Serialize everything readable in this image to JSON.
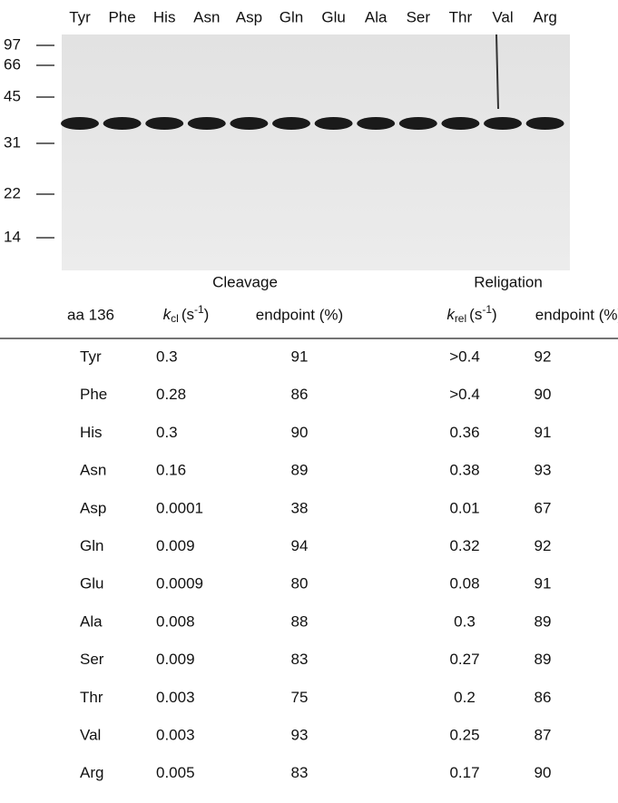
{
  "gel": {
    "lane_labels": [
      "Tyr",
      "Phe",
      "His",
      "Asn",
      "Asp",
      "Gln",
      "Glu",
      "Ala",
      "Ser",
      "Thr",
      "Val",
      "Arg"
    ],
    "marker_labels": [
      "97",
      "66",
      "45",
      "31",
      "22",
      "14"
    ]
  },
  "table": {
    "group_headers": [
      "Cleavage",
      "Religation"
    ],
    "columns": [
      {
        "text": "aa 136"
      },
      {
        "symbol": "k",
        "subscript": "cl",
        "unit_open": "(s",
        "superscript": "-1",
        "unit_close": ")"
      },
      {
        "text": "endpoint (%)"
      },
      {
        "symbol": "k",
        "subscript": "rel",
        "unit_open": "(s",
        "superscript": "-1",
        "unit_close": ")"
      },
      {
        "text": "endpoint (%)"
      }
    ],
    "rows": [
      [
        "Tyr",
        "0.3",
        "91",
        ">0.4",
        "92"
      ],
      [
        "Phe",
        "0.28",
        "86",
        ">0.4",
        "90"
      ],
      [
        "His",
        "0.3",
        "90",
        "0.36",
        "91"
      ],
      [
        "Asn",
        "0.16",
        "89",
        "0.38",
        "93"
      ],
      [
        "Asp",
        "0.0001",
        "38",
        "0.01",
        "67"
      ],
      [
        "Gln",
        "0.009",
        "94",
        "0.32",
        "92"
      ],
      [
        "Glu",
        "0.0009",
        "80",
        "0.08",
        "91"
      ],
      [
        "Ala",
        "0.008",
        "88",
        "0.3",
        "89"
      ],
      [
        "Ser",
        "0.009",
        "83",
        "0.27",
        "89"
      ],
      [
        "Thr",
        "0.003",
        "75",
        "0.2",
        "86"
      ],
      [
        "Val",
        "0.003",
        "93",
        "0.25",
        "87"
      ],
      [
        "Arg",
        "0.005",
        "83",
        "0.17",
        "90"
      ]
    ]
  }
}
